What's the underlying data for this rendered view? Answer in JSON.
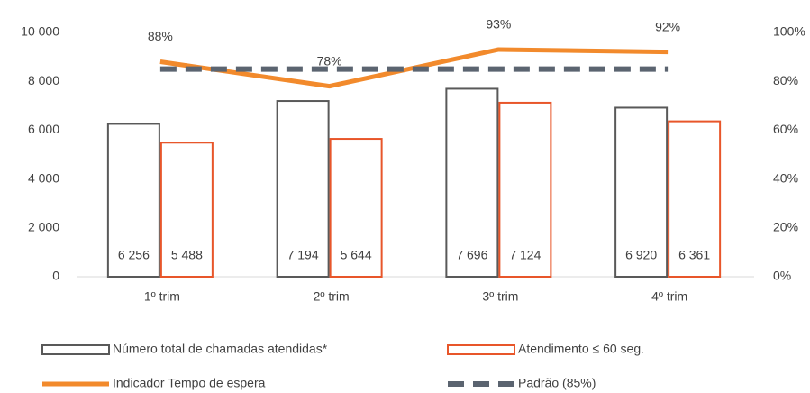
{
  "chart_data": {
    "type": "bar",
    "categories": [
      "1º trim",
      "2º trim",
      "3º trim",
      "4º trim"
    ],
    "ylim": [
      0,
      10000
    ],
    "yticks": [
      {
        "value": 0,
        "label": "0"
      },
      {
        "value": 2000,
        "label": "2 000"
      },
      {
        "value": 4000,
        "label": "4 000"
      },
      {
        "value": 6000,
        "label": "6 000"
      },
      {
        "value": 8000,
        "label": "8 000"
      },
      {
        "value": 10000,
        "label": "10 000"
      }
    ],
    "y2lim": [
      0,
      100
    ],
    "y2ticks": [
      {
        "value": 0,
        "label": "0%"
      },
      {
        "value": 20,
        "label": "20%"
      },
      {
        "value": 40,
        "label": "40%"
      },
      {
        "value": 60,
        "label": "60%"
      },
      {
        "value": 80,
        "label": "80%"
      },
      {
        "value": 100,
        "label": "100%"
      }
    ],
    "grid": false,
    "legend": "bottom",
    "series": [
      {
        "name": "Número total de chamadas atendidas*",
        "type": "bar",
        "color": "#595959",
        "values": [
          6256,
          7194,
          7696,
          6920
        ],
        "value_labels": [
          "6 256",
          "7 194",
          "7 696",
          "6 920"
        ]
      },
      {
        "name": "Atendimento ≤ 60 seg.",
        "type": "bar",
        "color": "#e8562a",
        "values": [
          5488,
          5644,
          7124,
          6361
        ],
        "value_labels": [
          "5 488",
          "5 644",
          "7 124",
          "6 361"
        ]
      },
      {
        "name": "Indicador Tempo de espera",
        "type": "line",
        "axis": "y2",
        "color": "#f28a2c",
        "values": [
          88,
          78,
          93,
          92
        ],
        "value_labels": [
          "88%",
          "78%",
          "93%",
          "92%"
        ]
      },
      {
        "name": "Padrão (85%)",
        "type": "line",
        "axis": "y2",
        "dashed": true,
        "color": "#5b6470",
        "values": [
          85,
          85,
          85,
          85
        ]
      }
    ]
  }
}
